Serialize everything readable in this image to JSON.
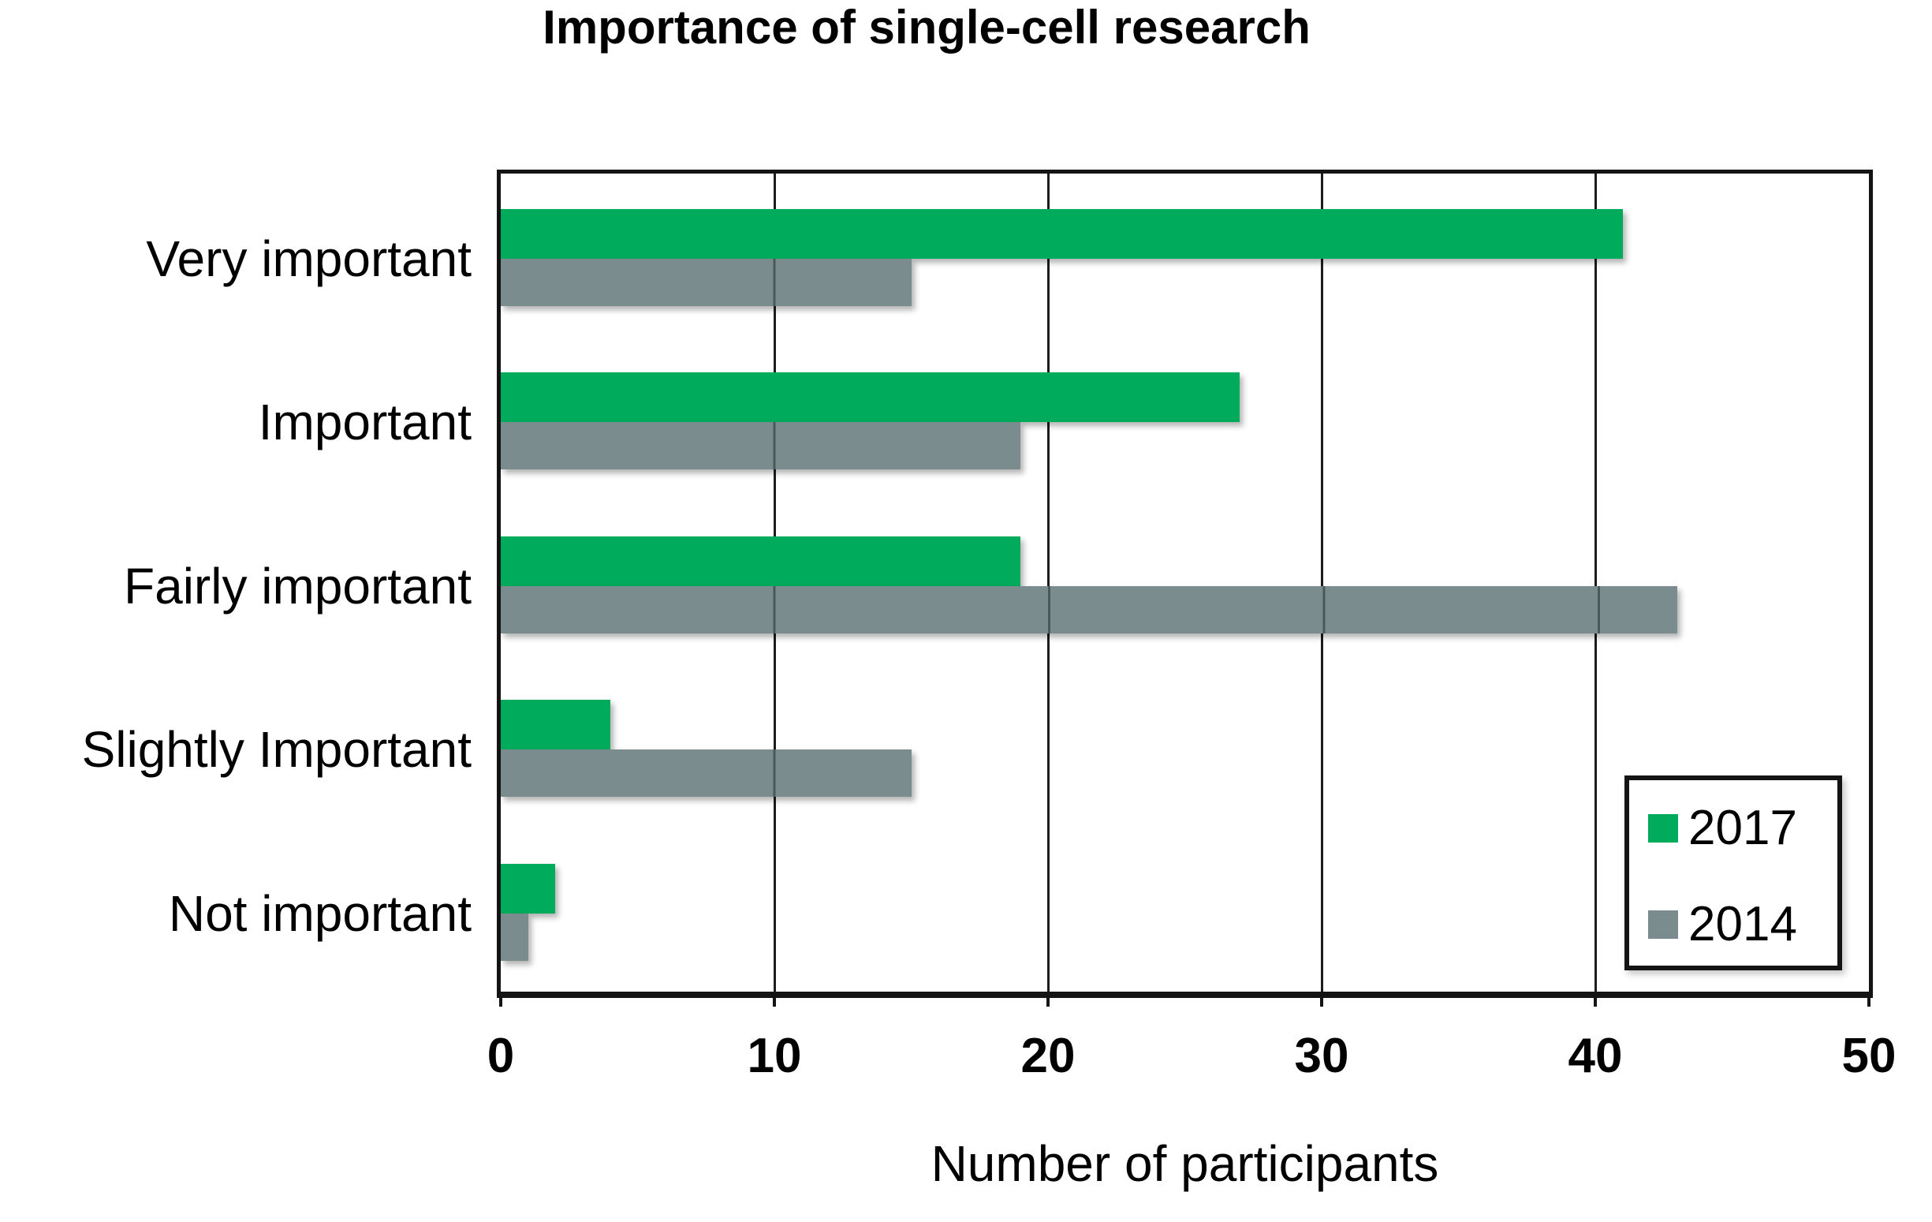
{
  "title": "Importance of single-cell research",
  "chart_data": {
    "type": "bar",
    "orientation": "horizontal",
    "title": "Importance of single-cell research",
    "categories": [
      "Very important",
      "Important",
      "Fairly important",
      "Slightly Important",
      "Not important"
    ],
    "series": [
      {
        "name": "2017",
        "color": "#00AB5C",
        "values": [
          41,
          27,
          19,
          4,
          2
        ]
      },
      {
        "name": "2014",
        "color": "#7A8C8E",
        "values": [
          15,
          19,
          43,
          15,
          1
        ]
      }
    ],
    "xlabel": "Number of participants",
    "x_ticks": [
      "0",
      "10",
      "20",
      "30",
      "40",
      "50"
    ],
    "xlim": [
      0,
      50
    ],
    "grid": "vertical gridlines every 10",
    "legend_position": "inside bottom-right",
    "legend_entries": [
      "2017",
      "2014"
    ]
  },
  "colors": {
    "series_2017_green": "#00AB5C",
    "series_2014_gray": "#7A8C8E",
    "axis_frame": "#141414",
    "background": "#FFFFFF"
  }
}
